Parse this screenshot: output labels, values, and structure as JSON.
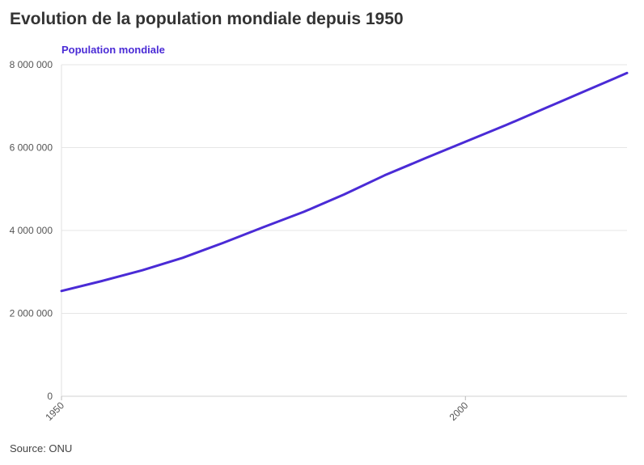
{
  "title": "Evolution de la population mondiale depuis 1950",
  "source": "Source: ONU",
  "chart_data": {
    "type": "line",
    "title": "Evolution de la population mondiale depuis 1950",
    "xlabel": "",
    "ylabel": "",
    "xlim": [
      1950,
      2020
    ],
    "ylim": [
      0,
      8000000
    ],
    "grid": true,
    "x_ticks": [
      1950,
      2000
    ],
    "y_ticks": [
      0,
      2000000,
      4000000,
      6000000,
      8000000
    ],
    "x_tick_labels": [
      "1950",
      "2000"
    ],
    "y_tick_labels": [
      "0",
      "2 000 000",
      "4 000 000",
      "6 000 000",
      "8 000 000"
    ],
    "series": [
      {
        "name": "Population mondiale",
        "color": "#4a2bd6",
        "x": [
          1950,
          1955,
          1960,
          1965,
          1970,
          1975,
          1980,
          1985,
          1990,
          1995,
          2000,
          2005,
          2010,
          2015,
          2020
        ],
        "y": [
          2540000,
          2780000,
          3040000,
          3340000,
          3700000,
          4080000,
          4450000,
          4870000,
          5330000,
          5740000,
          6140000,
          6540000,
          6960000,
          7380000,
          7800000
        ]
      }
    ]
  }
}
